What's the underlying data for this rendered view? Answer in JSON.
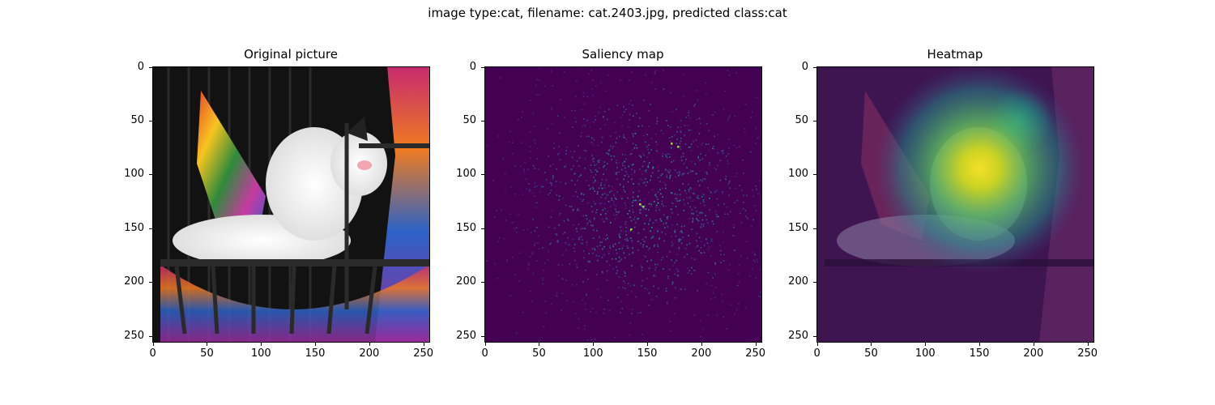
{
  "figure": {
    "suptitle": "image type:cat, filename: cat.2403.jpg, predicted class:cat"
  },
  "axes": {
    "xticks": [
      "0",
      "50",
      "100",
      "150",
      "200",
      "250"
    ],
    "yticks": [
      "0",
      "50",
      "100",
      "150",
      "200",
      "250"
    ]
  },
  "panels": [
    {
      "title": "Original picture"
    },
    {
      "title": "Saliency map"
    },
    {
      "title": "Heatmap"
    }
  ],
  "colors": {
    "viridis_dark": "#440154",
    "viridis_bright": "#fde725",
    "viridis_green": "#21a685"
  }
}
